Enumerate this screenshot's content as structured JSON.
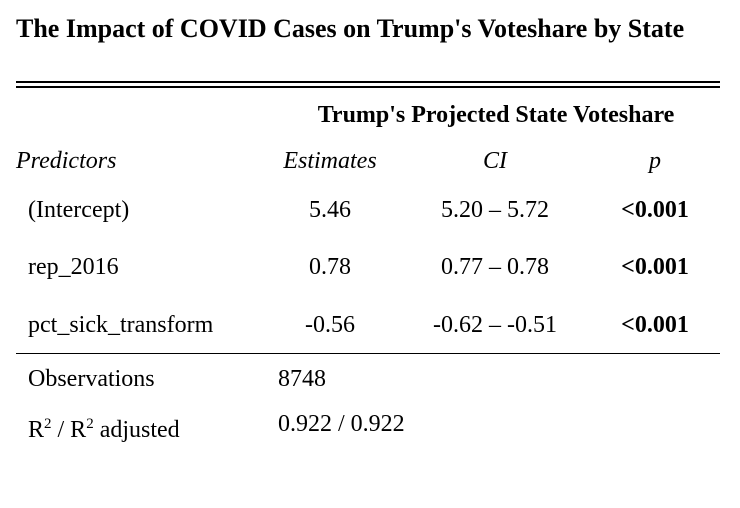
{
  "title": "The Impact of COVID Cases on Trump's Voteshare by State",
  "dependent_variable": "Trump's Projected State Voteshare",
  "columns": {
    "predictors": "Predictors",
    "estimates": "Estimates",
    "ci": "CI",
    "p": "p"
  },
  "rows": [
    {
      "predictor": "(Intercept)",
      "estimate": "5.46",
      "ci": "5.20 – 5.72",
      "p": "<0.001"
    },
    {
      "predictor": "rep_2016",
      "estimate": "0.78",
      "ci": "0.77 – 0.78",
      "p": "<0.001"
    },
    {
      "predictor": "pct_sick_transform",
      "estimate": "-0.56",
      "ci": "-0.62 – -0.51",
      "p": "<0.001"
    }
  ],
  "stats": {
    "observations_label": "Observations",
    "observations_value": "8748",
    "r2_label_base": "R",
    "r2_label_sup": "2",
    "r2_label_sep": " / R",
    "r2_label_sup2": "2",
    "r2_label_tail": " adjusted",
    "r2_value": "0.922 / 0.922"
  }
}
